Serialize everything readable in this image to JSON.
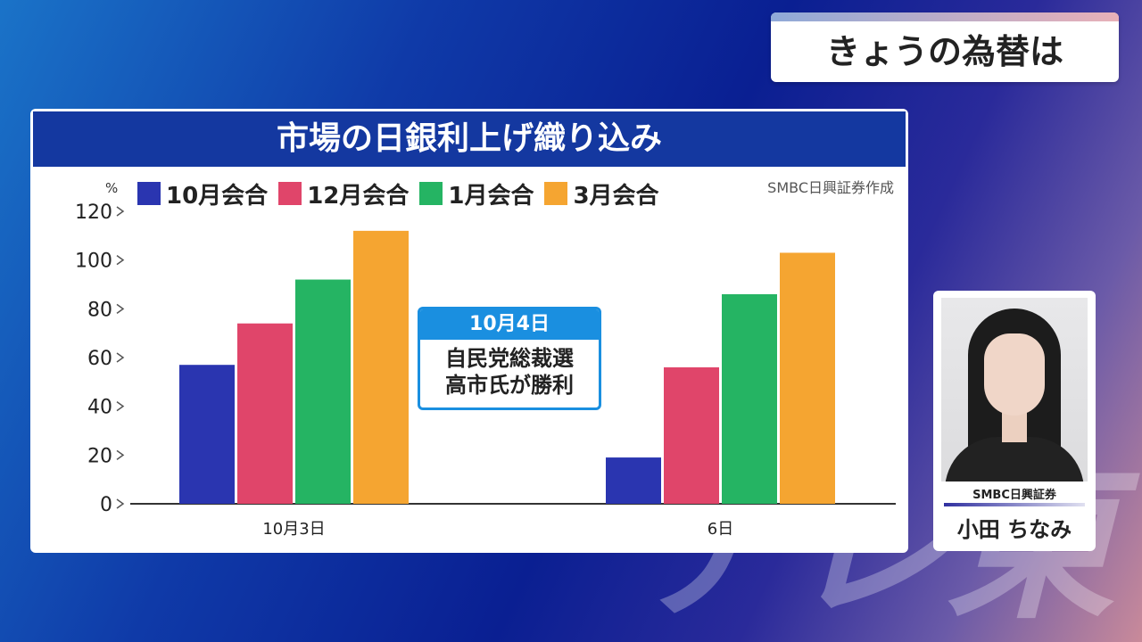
{
  "topic": "きょうの為替は",
  "panel": {
    "title": "市場の日銀利上げ織り込み",
    "source": "SMBC日興証券作成",
    "unit": "%"
  },
  "chart_data": {
    "type": "bar",
    "title": "市場の日銀利上げ織り込み",
    "ylabel": "%",
    "ylim": [
      0,
      120
    ],
    "yticks": [
      0,
      20,
      40,
      60,
      80,
      100,
      120
    ],
    "categories": [
      "10月3日",
      "6日"
    ],
    "series": [
      {
        "name": "10月会合",
        "color": "#2a35b0",
        "values": [
          57,
          19
        ]
      },
      {
        "name": "12月会合",
        "color": "#e0456a",
        "values": [
          74,
          56
        ]
      },
      {
        "name": "1月会合",
        "color": "#25b463",
        "values": [
          92,
          86
        ]
      },
      {
        "name": "3月会合",
        "color": "#f5a531",
        "values": [
          112,
          103
        ]
      }
    ]
  },
  "callout": {
    "date": "10月4日",
    "line1": "自民党総裁選",
    "line2": "高市氏が勝利"
  },
  "person": {
    "company": "SMBC日興証券",
    "name": "小田 ちなみ"
  },
  "watermark": "テレ東"
}
